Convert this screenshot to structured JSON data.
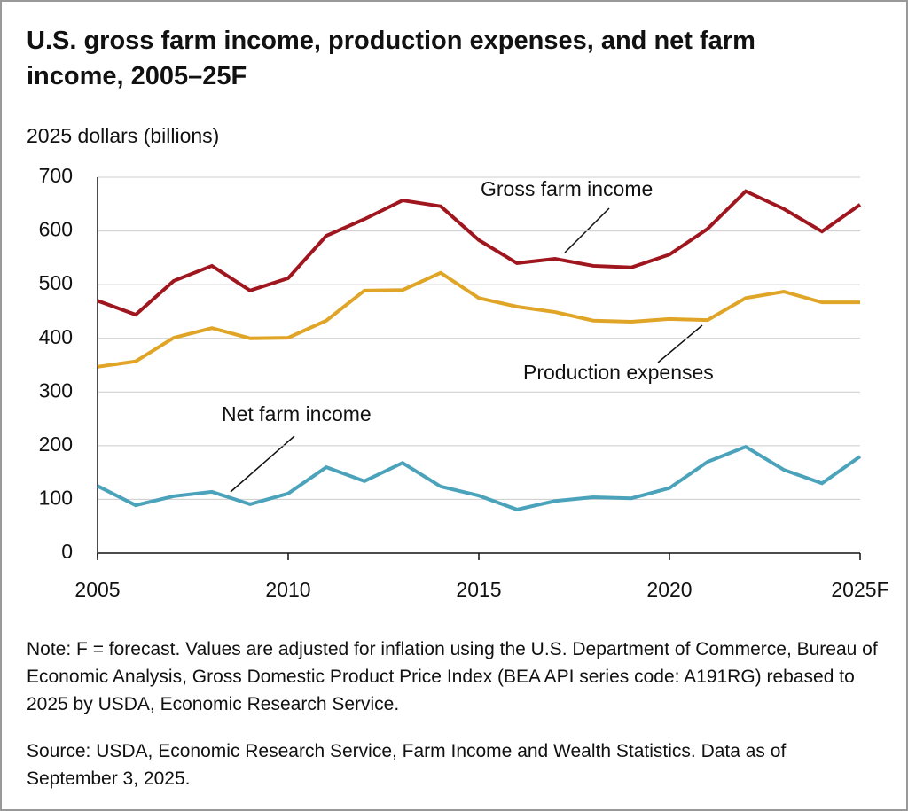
{
  "chart_data": {
    "type": "line",
    "title": "U.S. gross farm income, production expenses, and net farm income, 2005–25F",
    "y_label": "2025 dollars (billions)",
    "x": [
      2005,
      2006,
      2007,
      2008,
      2009,
      2010,
      2011,
      2012,
      2013,
      2014,
      2015,
      2016,
      2017,
      2018,
      2019,
      2020,
      2021,
      2022,
      2023,
      2024,
      2025
    ],
    "series": [
      {
        "name": "Gross farm income",
        "color": "#a0161f",
        "values": [
          470,
          444,
          507,
          535,
          489,
          512,
          591,
          622,
          657,
          646,
          583,
          540,
          548,
          535,
          532,
          556,
          604,
          674,
          641,
          599,
          649
        ]
      },
      {
        "name": "Production expenses",
        "color": "#e0a526",
        "values": [
          347,
          357,
          401,
          419,
          400,
          401,
          433,
          489,
          490,
          522,
          475,
          459,
          449,
          433,
          431,
          436,
          434,
          475,
          487,
          467,
          467
        ]
      },
      {
        "name": "Net farm income",
        "color": "#4ba3bb",
        "values": [
          125,
          89,
          106,
          114,
          91,
          111,
          160,
          134,
          168,
          124,
          107,
          81,
          97,
          104,
          102,
          121,
          170,
          198,
          155,
          130,
          180
        ]
      }
    ],
    "xlim": [
      2005,
      2025
    ],
    "xticks": [
      2005,
      2010,
      2015,
      2020,
      {
        "value": 2025,
        "label": "2025F"
      }
    ],
    "ylim": [
      0,
      700
    ],
    "yticks": [
      0,
      100,
      200,
      300,
      400,
      500,
      600,
      700
    ],
    "grid": true,
    "note": "Note: F = forecast. Values are adjusted for inflation using the U.S. Department of Commerce, Bureau of Economic Analysis, Gross Domestic Product Price Index (BEA API series code: A191RG) rebased to 2025 by USDA, Economic Research Service.",
    "source": "Source: USDA, Economic Research Service, Farm Income and Wealth Statistics. Data as of September 3, 2025."
  }
}
